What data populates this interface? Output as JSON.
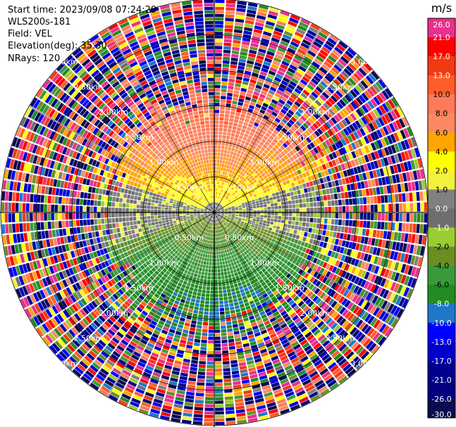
{
  "info": {
    "start_time": "Start time: 2023/09/08 07:24:29",
    "instrument": "WLS200s-181",
    "field": "Field: VEL",
    "elevation": "Elevation(deg): 35.30",
    "nrays": "NRays: 120"
  },
  "chart_data": {
    "type": "heatmap",
    "projection": "polar-ppi",
    "nrays": 120,
    "range_rings_km": [
      0.5,
      1.0,
      1.5,
      2.0,
      2.5,
      3.0
    ],
    "ring_labels": [
      "0.50km",
      "1.00km",
      "1.50km",
      "2.00km",
      "2.50km",
      "3.00km"
    ],
    "max_range_km": 3.0,
    "clean_range_km": 1.6,
    "field_pattern": {
      "north_sector_velocity_ms": [
        2,
        10
      ],
      "south_sector_velocity_ms": [
        -8,
        -2
      ],
      "near_zero_band": "east-west"
    },
    "colorbar": {
      "unit": "m/s",
      "tick_labels": [
        "26.0",
        "21.0",
        "17.0",
        "13.0",
        "10.0",
        "8.0",
        "6.0",
        "4.0",
        "2.0",
        "1.0",
        "0.0",
        "-1.0",
        "-2.0",
        "-4.0",
        "-6.0",
        "-8.0",
        "-10.0",
        "-13.0",
        "-17.0",
        "-21.0",
        "-26.0",
        "-30.0"
      ],
      "bins": [
        {
          "min": 21,
          "max": 26,
          "color": "#e8308c"
        },
        {
          "min": 17,
          "max": 21,
          "color": "#ff0000"
        },
        {
          "min": 13,
          "max": 17,
          "color": "#f23a12"
        },
        {
          "min": 10,
          "max": 13,
          "color": "#ff5e2a"
        },
        {
          "min": 8,
          "max": 10,
          "color": "#ff7a5a"
        },
        {
          "min": 6,
          "max": 8,
          "color": "#fb8a64"
        },
        {
          "min": 4,
          "max": 6,
          "color": "#ffa500"
        },
        {
          "min": 2,
          "max": 4,
          "color": "#ffff00"
        },
        {
          "min": 1,
          "max": 2,
          "color": "#f2f23c"
        },
        {
          "min": 0,
          "max": 1,
          "color": "#808080"
        },
        {
          "min": -1,
          "max": 0,
          "color": "#6e6e6e"
        },
        {
          "min": -2,
          "max": -1,
          "color": "#9acd32"
        },
        {
          "min": -4,
          "max": -2,
          "color": "#6b8e23"
        },
        {
          "min": -6,
          "max": -4,
          "color": "#3a9a3a"
        },
        {
          "min": -8,
          "max": -6,
          "color": "#228b22"
        },
        {
          "min": -10,
          "max": -8,
          "color": "#1e78c8"
        },
        {
          "min": -13,
          "max": -10,
          "color": "#0000ff"
        },
        {
          "min": -17,
          "max": -13,
          "color": "#0000cd"
        },
        {
          "min": -21,
          "max": -17,
          "color": "#00008b"
        },
        {
          "min": -26,
          "max": -21,
          "color": "#000080"
        },
        {
          "min": -30,
          "max": -26,
          "color": "#0a0a50"
        }
      ]
    }
  }
}
